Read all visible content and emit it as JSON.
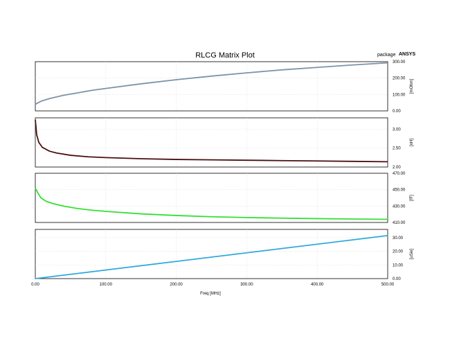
{
  "header": {
    "title": "RLCG Matrix Plot",
    "design_name": "package",
    "brand": "ANSYS"
  },
  "xaxis": {
    "label": "Freq [MHz]",
    "ticks": [
      "0.00",
      "100.00",
      "200.00",
      "300.00",
      "400.00",
      "500.00"
    ]
  },
  "chart_data": [
    {
      "type": "line",
      "title": "",
      "xlabel": "",
      "ylabel": "[mOhm]",
      "xlim": [
        0,
        500
      ],
      "ylim": [
        0,
        300
      ],
      "grid": true,
      "yticks": [
        "0.00",
        "100.00",
        "200.00",
        "300.00"
      ],
      "series": [
        {
          "color": "#7d93a8",
          "x": [
            0,
            5,
            10,
            20,
            40,
            60,
            80,
            100,
            150,
            200,
            250,
            300,
            350,
            400,
            450,
            500
          ],
          "y": [
            40,
            52,
            62,
            75,
            95,
            110,
            125,
            137,
            165,
            190,
            212,
            232,
            250,
            265,
            280,
            293
          ]
        }
      ]
    },
    {
      "type": "line",
      "title": "",
      "xlabel": "",
      "ylabel": "[nH]",
      "xlim": [
        0,
        500
      ],
      "ylim": [
        2.0,
        3.3
      ],
      "grid": true,
      "yticks": [
        "2.00",
        "2.50",
        "3.00"
      ],
      "series": [
        {
          "color": "#4a0f0f",
          "x": [
            0,
            2,
            5,
            10,
            20,
            30,
            50,
            75,
            100,
            150,
            200,
            250,
            300,
            350,
            400,
            450,
            500
          ],
          "y": [
            3.25,
            2.85,
            2.65,
            2.52,
            2.42,
            2.37,
            2.31,
            2.27,
            2.25,
            2.22,
            2.2,
            2.19,
            2.18,
            2.17,
            2.16,
            2.15,
            2.14
          ]
        }
      ]
    },
    {
      "type": "line",
      "title": "",
      "xlabel": "",
      "ylabel": "[fF]",
      "xlim": [
        0,
        500
      ],
      "ylim": [
        410,
        470
      ],
      "grid": true,
      "yticks": [
        "410.00",
        "430.00",
        "450.00",
        "470.00"
      ],
      "series": [
        {
          "color": "#33e033",
          "x": [
            0,
            3,
            8,
            15,
            25,
            40,
            60,
            80,
            100,
            150,
            200,
            250,
            300,
            350,
            400,
            450,
            500
          ],
          "y": [
            452,
            447,
            440,
            436,
            433,
            430,
            427,
            425,
            423.5,
            420.5,
            418.5,
            417,
            416,
            415.3,
            414.7,
            414.2,
            413.8
          ]
        }
      ]
    },
    {
      "type": "line",
      "title": "",
      "xlabel": "Freq [MHz]",
      "ylabel": "[uSie]",
      "xlim": [
        0,
        500
      ],
      "ylim": [
        0,
        36
      ],
      "grid": true,
      "yticks": [
        "0.00",
        "10.00",
        "20.00",
        "30.00"
      ],
      "series": [
        {
          "color": "#2fa8dc",
          "x": [
            0,
            500
          ],
          "y": [
            0,
            31.5
          ]
        }
      ]
    }
  ]
}
